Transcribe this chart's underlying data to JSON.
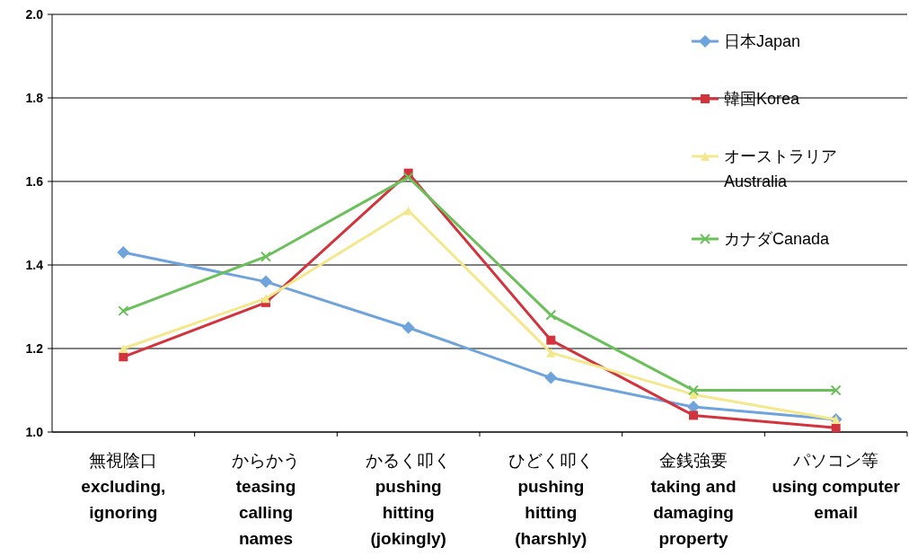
{
  "chart_data": {
    "type": "line",
    "categories": [
      "無視陰口\nexcluding,\nignoring",
      "からかう\nteasing\ncalling\nnames",
      "かるく叩く\npushing\nhitting\n(jokingly)",
      "ひどく叩く\npushing\nhitting\n(harshly)",
      "金銭強要\ntaking and\ndamaging\nproperty",
      "パソコン等\nusing computer\nemail"
    ],
    "series": [
      {
        "name": "日本Japan",
        "color": "#6ea3dc",
        "marker": "diamond",
        "values": [
          1.43,
          1.36,
          1.25,
          1.13,
          1.06,
          1.03
        ]
      },
      {
        "name": "韓国Korea",
        "color": "#d2343e",
        "marker": "square",
        "values": [
          1.18,
          1.31,
          1.62,
          1.22,
          1.04,
          1.01
        ]
      },
      {
        "name": "オーストラリアAustralia",
        "color": "#f3e88c",
        "marker": "triangle",
        "values": [
          1.2,
          1.32,
          1.53,
          1.19,
          1.09,
          1.03
        ]
      },
      {
        "name": "カナダCanada",
        "color": "#6cc05c",
        "marker": "cross",
        "values": [
          1.29,
          1.42,
          1.61,
          1.28,
          1.1,
          1.1
        ]
      }
    ],
    "ylim": [
      1,
      2
    ],
    "yticks": [
      {
        "value": 1,
        "label": "1.0"
      },
      {
        "value": 1.2,
        "label": "1.2"
      },
      {
        "value": 1.4,
        "label": "1.4"
      },
      {
        "value": 1.6,
        "label": "1.6"
      },
      {
        "value": 1.8,
        "label": "1.8"
      },
      {
        "value": 2,
        "label": "2.0"
      }
    ],
    "grid": "y",
    "legend": "top right"
  }
}
